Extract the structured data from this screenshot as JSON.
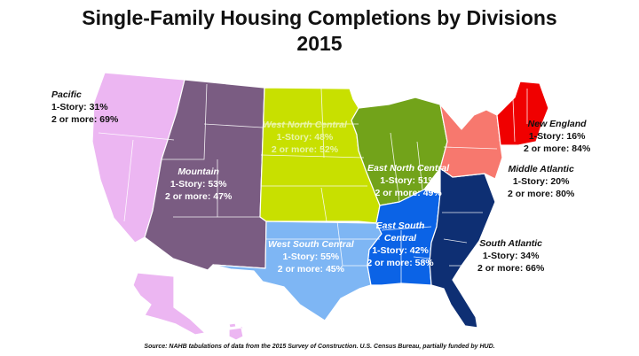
{
  "title_line1": "Single-Family Housing Completions by Divisions",
  "title_line2": "2015",
  "colors": {
    "pacific": "#ecb6f2",
    "mountain": "#7a5c82",
    "west_north_central": "#c8e000",
    "east_north_central": "#72a31a",
    "west_south_central": "#7eb6f4",
    "east_south_central": "#0b63e6",
    "south_atlantic": "#0e2f73",
    "middle_atlantic": "#f7786e",
    "new_england": "#f00000",
    "border": "#ffffff"
  },
  "divisions": [
    {
      "id": "pacific",
      "name": "Pacific",
      "one_story": "1-Story: 31%",
      "two_more": "2 or more: 69%"
    },
    {
      "id": "mountain",
      "name": "Mountain",
      "one_story": "1-Story: 53%",
      "two_more": "2 or more: 47%"
    },
    {
      "id": "west_north_central",
      "name": "West North Central",
      "one_story": "1-Story: 48%",
      "two_more": "2 or more: 52%"
    },
    {
      "id": "east_north_central",
      "name": "East North Central",
      "one_story": "1-Story: 51%",
      "two_more": "2 or more: 49%"
    },
    {
      "id": "west_south_central",
      "name": "West South Central",
      "one_story": "1-Story: 55%",
      "two_more": "2 or more: 45%"
    },
    {
      "id": "east_south_central",
      "name": "East South Central",
      "one_story": "1-Story: 42%",
      "two_more": "2 or more: 58%"
    },
    {
      "id": "south_atlantic",
      "name": "South Atlantic",
      "one_story": "1-Story: 34%",
      "two_more": "2 or more: 66%"
    },
    {
      "id": "middle_atlantic",
      "name": "Middle Atlantic",
      "one_story": "1-Story: 20%",
      "two_more": "2 or more: 80%"
    },
    {
      "id": "new_england",
      "name": "New England",
      "one_story": "1-Story: 16%",
      "two_more": "2 or more: 84%"
    }
  ],
  "source": "Source: NAHB tabulations of data from the 2015 Survey of Construction. U.S. Census Bureau, partially funded by HUD."
}
